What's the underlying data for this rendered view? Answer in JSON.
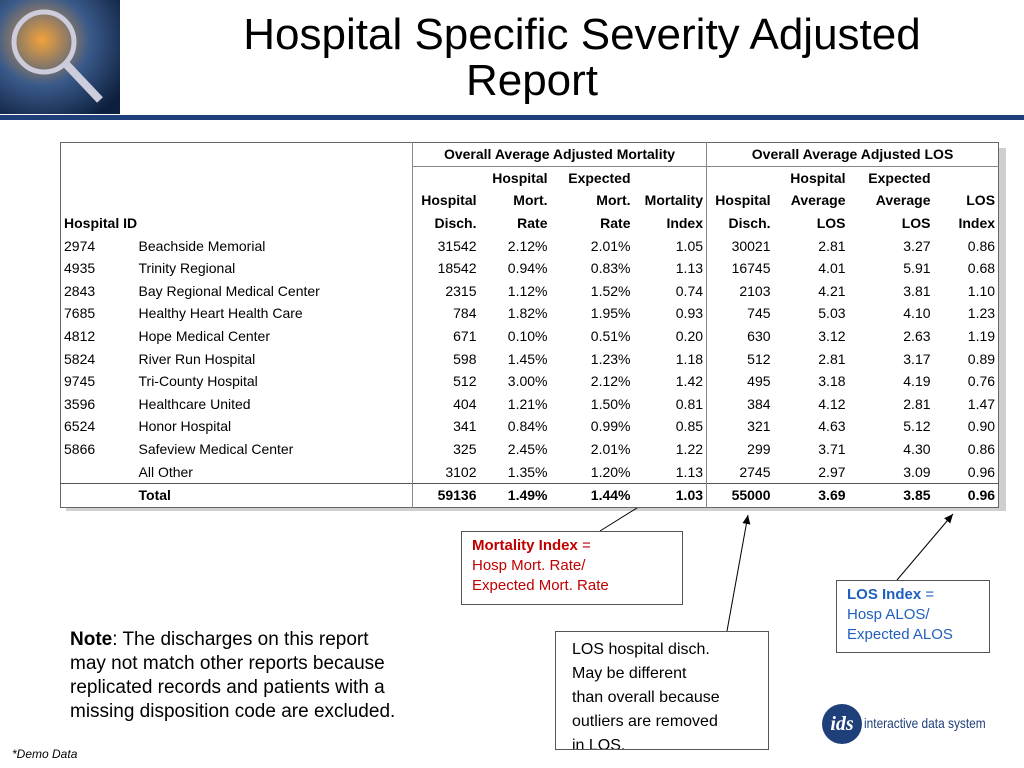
{
  "header": {
    "title": [
      "Hospital Specific Severity Adjusted",
      "Report"
    ]
  },
  "table": {
    "groups": [
      "Overall Average Adjusted Mortality",
      "Overall Average Adjusted LOS"
    ],
    "id_header": "Hospital ID",
    "columns": [
      [
        "Hospital",
        "Disch."
      ],
      [
        "Hospital",
        "Mort.",
        "Rate"
      ],
      [
        "Expected",
        "Mort.",
        "Rate"
      ],
      [
        "Mortality",
        "Index"
      ],
      [
        "Hospital",
        "Disch."
      ],
      [
        "Hospital",
        "Average",
        "LOS"
      ],
      [
        "Expected",
        "Average",
        "LOS"
      ],
      [
        "LOS",
        "Index"
      ]
    ],
    "rows": [
      {
        "id": "2974",
        "name": "Beachside Memorial",
        "values": [
          "31542",
          "2.12%",
          "2.01%",
          "1.05",
          "30021",
          "2.81",
          "3.27",
          "0.86"
        ]
      },
      {
        "id": "4935",
        "name": "Trinity Regional",
        "values": [
          "18542",
          "0.94%",
          "0.83%",
          "1.13",
          "16745",
          "4.01",
          "5.91",
          "0.68"
        ]
      },
      {
        "id": "2843",
        "name": "Bay Regional Medical Center",
        "values": [
          "2315",
          "1.12%",
          "1.52%",
          "0.74",
          "2103",
          "4.21",
          "3.81",
          "1.10"
        ]
      },
      {
        "id": "7685",
        "name": "Healthy Heart Health Care",
        "values": [
          "784",
          "1.82%",
          "1.95%",
          "0.93",
          "745",
          "5.03",
          "4.10",
          "1.23"
        ]
      },
      {
        "id": "4812",
        "name": "Hope Medical Center",
        "values": [
          "671",
          "0.10%",
          "0.51%",
          "0.20",
          "630",
          "3.12",
          "2.63",
          "1.19"
        ]
      },
      {
        "id": "5824",
        "name": "River Run Hospital",
        "values": [
          "598",
          "1.45%",
          "1.23%",
          "1.18",
          "512",
          "2.81",
          "3.17",
          "0.89"
        ]
      },
      {
        "id": "9745",
        "name": "Tri-County Hospital",
        "values": [
          "512",
          "3.00%",
          "2.12%",
          "1.42",
          "495",
          "3.18",
          "4.19",
          "0.76"
        ]
      },
      {
        "id": "3596",
        "name": "Healthcare United",
        "values": [
          "404",
          "1.21%",
          "1.50%",
          "0.81",
          "384",
          "4.12",
          "2.81",
          "1.47"
        ]
      },
      {
        "id": "6524",
        "name": "Honor Hospital",
        "values": [
          "341",
          "0.84%",
          "0.99%",
          "0.85",
          "321",
          "4.63",
          "5.12",
          "0.90"
        ]
      },
      {
        "id": "5866",
        "name": "Safeview Medical Center",
        "values": [
          "325",
          "2.45%",
          "2.01%",
          "1.22",
          "299",
          "3.71",
          "4.30",
          "0.86"
        ]
      },
      {
        "name": "All Other",
        "values": [
          "3102",
          "1.35%",
          "1.20%",
          "1.13",
          "2745",
          "2.97",
          "3.09",
          "0.96"
        ]
      }
    ],
    "total": {
      "name": "Total",
      "values": [
        "59136",
        "1.49%",
        "1.44%",
        "1.03",
        "55000",
        "3.69",
        "3.85",
        "0.96"
      ]
    }
  },
  "callouts": {
    "mortality": {
      "term": "Mortality Index",
      "eq": "=",
      "lines": [
        "Hosp Mort. Rate/",
        "Expected Mort. Rate"
      ]
    },
    "los_disch": {
      "lines": [
        "LOS hospital disch.",
        "May be different",
        "than overall because",
        "outliers are removed",
        "in LOS."
      ]
    },
    "los_index": {
      "term": "LOS Index",
      "eq": "=",
      "lines": [
        "Hosp ALOS/",
        "Expected ALOS"
      ]
    }
  },
  "note": {
    "label": "Note",
    "lines": [
      ": The discharges on this report",
      "may not match other reports because",
      "replicated records and patients with a",
      "missing disposition code are excluded."
    ]
  },
  "footer": {
    "demo": "*Demo Data",
    "logo_mark": "ids",
    "logo_text": "interactive data system"
  }
}
